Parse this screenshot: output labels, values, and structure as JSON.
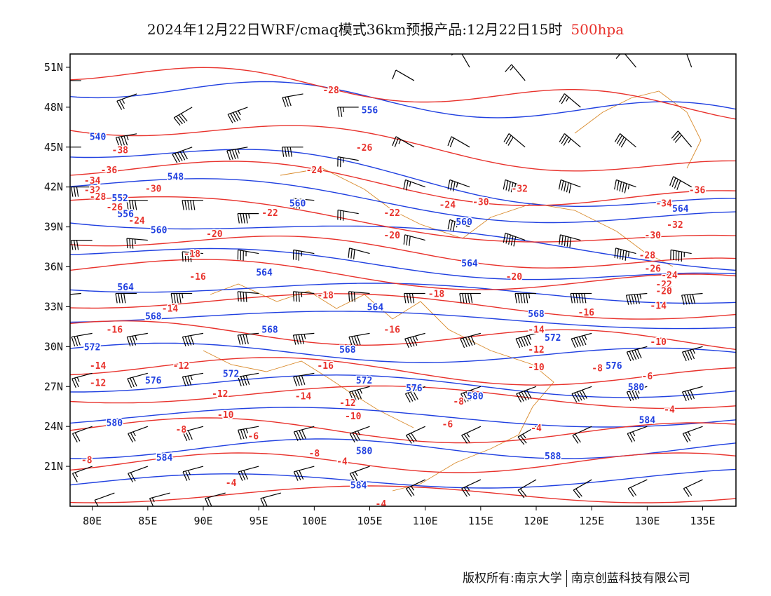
{
  "title": {
    "main": "2024年12月22日WRF/cmaq模式36km预报产品:12月22日15时",
    "level": "500hpa"
  },
  "axes": {
    "lat_labels": [
      "51N",
      "48N",
      "45N",
      "42N",
      "39N",
      "36N",
      "33N",
      "30N",
      "27N",
      "24N",
      "21N"
    ],
    "lat_values": [
      51,
      48,
      45,
      42,
      39,
      36,
      33,
      30,
      27,
      24,
      21
    ],
    "lon_labels": [
      "80E",
      "85E",
      "90E",
      "95E",
      "100E",
      "105E",
      "110E",
      "115E",
      "120E",
      "125E",
      "130E",
      "135E"
    ],
    "lon_values": [
      80,
      85,
      90,
      95,
      100,
      105,
      110,
      115,
      120,
      125,
      130,
      135
    ],
    "lon_range": [
      78,
      138
    ],
    "lat_range": [
      18,
      52
    ]
  },
  "colors": {
    "height_contour": "#2040e0",
    "temperature_contour": "#e8322c",
    "wind_barb": "#000000",
    "boundary": "#d98a2b"
  },
  "height_labels": [
    {
      "text": "556",
      "lon": 105.0,
      "lat": 47.8
    },
    {
      "text": "540",
      "lon": 80.5,
      "lat": 45.8
    },
    {
      "text": "548",
      "lon": 87.5,
      "lat": 42.8
    },
    {
      "text": "552",
      "lon": 82.5,
      "lat": 41.2
    },
    {
      "text": "556",
      "lon": 83.0,
      "lat": 40.0
    },
    {
      "text": "560",
      "lon": 98.5,
      "lat": 40.8
    },
    {
      "text": "560",
      "lon": 86.0,
      "lat": 38.8
    },
    {
      "text": "560",
      "lon": 113.5,
      "lat": 39.4
    },
    {
      "text": "564",
      "lon": 133.0,
      "lat": 40.4
    },
    {
      "text": "564",
      "lon": 95.5,
      "lat": 35.6
    },
    {
      "text": "564",
      "lon": 83.0,
      "lat": 34.5
    },
    {
      "text": "564",
      "lon": 114.0,
      "lat": 36.3
    },
    {
      "text": "564",
      "lon": 105.5,
      "lat": 33.0
    },
    {
      "text": "568",
      "lon": 85.5,
      "lat": 32.3
    },
    {
      "text": "568",
      "lon": 96.0,
      "lat": 31.3
    },
    {
      "text": "568",
      "lon": 103.0,
      "lat": 29.8
    },
    {
      "text": "568",
      "lon": 120.0,
      "lat": 32.5
    },
    {
      "text": "572",
      "lon": 80.0,
      "lat": 30.0
    },
    {
      "text": "572",
      "lon": 92.5,
      "lat": 28.0
    },
    {
      "text": "572",
      "lon": 104.5,
      "lat": 27.5
    },
    {
      "text": "572",
      "lon": 121.5,
      "lat": 30.7
    },
    {
      "text": "576",
      "lon": 85.5,
      "lat": 27.5
    },
    {
      "text": "576",
      "lon": 109.0,
      "lat": 26.9
    },
    {
      "text": "576",
      "lon": 127.0,
      "lat": 28.6
    },
    {
      "text": "580",
      "lon": 82.0,
      "lat": 24.3
    },
    {
      "text": "580",
      "lon": 114.5,
      "lat": 26.3
    },
    {
      "text": "580",
      "lon": 104.5,
      "lat": 22.2
    },
    {
      "text": "580",
      "lon": 129.0,
      "lat": 27.0
    },
    {
      "text": "584",
      "lon": 86.5,
      "lat": 21.7
    },
    {
      "text": "584",
      "lon": 104.0,
      "lat": 19.6
    },
    {
      "text": "584",
      "lon": 130.0,
      "lat": 24.5
    },
    {
      "text": "588",
      "lon": 121.5,
      "lat": 21.8
    }
  ],
  "temperature_labels": [
    {
      "text": "-28",
      "lon": 101.5,
      "lat": 49.3
    },
    {
      "text": "-26",
      "lon": 104.5,
      "lat": 45.0
    },
    {
      "text": "-24",
      "lon": 100.0,
      "lat": 43.3
    },
    {
      "text": "-38",
      "lon": 82.5,
      "lat": 44.8
    },
    {
      "text": "-36",
      "lon": 81.5,
      "lat": 43.3
    },
    {
      "text": "-34",
      "lon": 80.0,
      "lat": 42.5
    },
    {
      "text": "-32",
      "lon": 80.0,
      "lat": 41.8
    },
    {
      "text": "-30",
      "lon": 85.5,
      "lat": 41.9
    },
    {
      "text": "-28",
      "lon": 80.5,
      "lat": 41.3
    },
    {
      "text": "-26",
      "lon": 82.0,
      "lat": 40.5
    },
    {
      "text": "-24",
      "lon": 84.0,
      "lat": 39.5
    },
    {
      "text": "-22",
      "lon": 96.0,
      "lat": 40.1
    },
    {
      "text": "-22",
      "lon": 107.0,
      "lat": 40.1
    },
    {
      "text": "-20",
      "lon": 91.0,
      "lat": 38.5
    },
    {
      "text": "-20",
      "lon": 107.0,
      "lat": 38.4
    },
    {
      "text": "-20",
      "lon": 118.0,
      "lat": 35.3
    },
    {
      "text": "-18",
      "lon": 89.0,
      "lat": 37.0
    },
    {
      "text": "-18",
      "lon": 101.0,
      "lat": 33.9
    },
    {
      "text": "-18",
      "lon": 111.0,
      "lat": 34.0
    },
    {
      "text": "-16",
      "lon": 89.5,
      "lat": 35.3
    },
    {
      "text": "-16",
      "lon": 82.0,
      "lat": 31.3
    },
    {
      "text": "-16",
      "lon": 107.0,
      "lat": 31.3
    },
    {
      "text": "-16",
      "lon": 101.0,
      "lat": 28.6
    },
    {
      "text": "-16",
      "lon": 124.5,
      "lat": 32.6
    },
    {
      "text": "-14",
      "lon": 87.0,
      "lat": 32.9
    },
    {
      "text": "-14",
      "lon": 80.5,
      "lat": 28.6
    },
    {
      "text": "-14",
      "lon": 99.0,
      "lat": 26.3
    },
    {
      "text": "-14",
      "lon": 120.0,
      "lat": 31.3
    },
    {
      "text": "-14",
      "lon": 131.0,
      "lat": 33.1
    },
    {
      "text": "-12",
      "lon": 88.0,
      "lat": 28.6
    },
    {
      "text": "-12",
      "lon": 80.5,
      "lat": 27.3
    },
    {
      "text": "-12",
      "lon": 91.5,
      "lat": 26.5
    },
    {
      "text": "-12",
      "lon": 103.0,
      "lat": 25.8
    },
    {
      "text": "-12",
      "lon": 120.0,
      "lat": 29.8
    },
    {
      "text": "-10",
      "lon": 92.0,
      "lat": 24.9
    },
    {
      "text": "-10",
      "lon": 103.5,
      "lat": 24.8
    },
    {
      "text": "-10",
      "lon": 120.0,
      "lat": 28.5
    },
    {
      "text": "-10",
      "lon": 131.0,
      "lat": 30.4
    },
    {
      "text": "-8",
      "lon": 88.0,
      "lat": 23.8
    },
    {
      "text": "-8",
      "lon": 113.0,
      "lat": 25.9
    },
    {
      "text": "-8",
      "lon": 100.0,
      "lat": 22.0
    },
    {
      "text": "-8",
      "lon": 125.5,
      "lat": 28.4
    },
    {
      "text": "-8",
      "lon": 79.5,
      "lat": 21.5
    },
    {
      "text": "-6",
      "lon": 94.5,
      "lat": 23.3
    },
    {
      "text": "-6",
      "lon": 112.0,
      "lat": 24.2
    },
    {
      "text": "-6",
      "lon": 130.0,
      "lat": 27.8
    },
    {
      "text": "-4",
      "lon": 102.5,
      "lat": 21.4
    },
    {
      "text": "-4",
      "lon": 92.5,
      "lat": 19.8
    },
    {
      "text": "-4",
      "lon": 106.0,
      "lat": 18.2
    },
    {
      "text": "-4",
      "lon": 120.0,
      "lat": 23.9
    },
    {
      "text": "-4",
      "lon": 132.0,
      "lat": 25.3
    },
    {
      "text": "-32",
      "lon": 118.5,
      "lat": 41.9
    },
    {
      "text": "-30",
      "lon": 115.0,
      "lat": 40.9
    },
    {
      "text": "-24",
      "lon": 112.0,
      "lat": 40.7
    },
    {
      "text": "-36",
      "lon": 134.5,
      "lat": 41.8
    },
    {
      "text": "-34",
      "lon": 131.5,
      "lat": 40.8
    },
    {
      "text": "-32",
      "lon": 132.5,
      "lat": 39.2
    },
    {
      "text": "-30",
      "lon": 130.5,
      "lat": 38.4
    },
    {
      "text": "-28",
      "lon": 130.0,
      "lat": 36.9
    },
    {
      "text": "-26",
      "lon": 130.5,
      "lat": 35.9
    },
    {
      "text": "-24",
      "lon": 132.0,
      "lat": 35.4
    },
    {
      "text": "-22",
      "lon": 131.5,
      "lat": 34.7
    },
    {
      "text": "-20",
      "lon": 131.5,
      "lat": 34.2
    }
  ],
  "wind_barbs": [
    {
      "lon": 79,
      "lat": 50,
      "dir": 270,
      "spd": 20
    },
    {
      "lon": 84,
      "lat": 49,
      "dir": 250,
      "spd": 25
    },
    {
      "lon": 89,
      "lat": 48,
      "dir": 240,
      "spd": 40
    },
    {
      "lon": 94,
      "lat": 48,
      "dir": 250,
      "spd": 45
    },
    {
      "lon": 99,
      "lat": 49,
      "dir": 260,
      "spd": 30
    },
    {
      "lon": 104,
      "lat": 48,
      "dir": 270,
      "spd": 25
    },
    {
      "lon": 109,
      "lat": 50,
      "dir": 300,
      "spd": 10
    },
    {
      "lon": 114,
      "lat": 51,
      "dir": 330,
      "spd": 10
    },
    {
      "lon": 119,
      "lat": 50,
      "dir": 320,
      "spd": 15
    },
    {
      "lon": 124,
      "lat": 48,
      "dir": 310,
      "spd": 25
    },
    {
      "lon": 129,
      "lat": 51,
      "dir": 320,
      "spd": 10
    },
    {
      "lon": 134,
      "lat": 51,
      "dir": 340,
      "spd": 10
    },
    {
      "lon": 79,
      "lat": 45,
      "dir": 270,
      "spd": 30
    },
    {
      "lon": 84,
      "lat": 46,
      "dir": 260,
      "spd": 45
    },
    {
      "lon": 89,
      "lat": 45,
      "dir": 250,
      "spd": 50
    },
    {
      "lon": 94,
      "lat": 45,
      "dir": 260,
      "spd": 45
    },
    {
      "lon": 99,
      "lat": 45,
      "dir": 270,
      "spd": 40
    },
    {
      "lon": 104,
      "lat": 44,
      "dir": 280,
      "spd": 25
    },
    {
      "lon": 109,
      "lat": 45,
      "dir": 300,
      "spd": 25
    },
    {
      "lon": 114,
      "lat": 45,
      "dir": 300,
      "spd": 20
    },
    {
      "lon": 119,
      "lat": 45,
      "dir": 310,
      "spd": 30
    },
    {
      "lon": 124,
      "lat": 45,
      "dir": 310,
      "spd": 35
    },
    {
      "lon": 129,
      "lat": 45,
      "dir": 310,
      "spd": 40
    },
    {
      "lon": 134,
      "lat": 45,
      "dir": 320,
      "spd": 30
    },
    {
      "lon": 80,
      "lat": 42,
      "dir": 270,
      "spd": 30
    },
    {
      "lon": 85,
      "lat": 41,
      "dir": 270,
      "spd": 40
    },
    {
      "lon": 90,
      "lat": 41,
      "dir": 270,
      "spd": 50
    },
    {
      "lon": 95,
      "lat": 40,
      "dir": 270,
      "spd": 45
    },
    {
      "lon": 100,
      "lat": 41,
      "dir": 275,
      "spd": 35
    },
    {
      "lon": 104,
      "lat": 40,
      "dir": 280,
      "spd": 30
    },
    {
      "lon": 110,
      "lat": 42,
      "dir": 290,
      "spd": 25
    },
    {
      "lon": 114,
      "lat": 42,
      "dir": 290,
      "spd": 35
    },
    {
      "lon": 119,
      "lat": 42,
      "dir": 290,
      "spd": 45
    },
    {
      "lon": 124,
      "lat": 42,
      "dir": 290,
      "spd": 50
    },
    {
      "lon": 129,
      "lat": 42,
      "dir": 290,
      "spd": 55
    },
    {
      "lon": 134,
      "lat": 42,
      "dir": 300,
      "spd": 40
    },
    {
      "lon": 80,
      "lat": 38,
      "dir": 270,
      "spd": 30
    },
    {
      "lon": 85,
      "lat": 38,
      "dir": 275,
      "spd": 35
    },
    {
      "lon": 90,
      "lat": 37,
      "dir": 275,
      "spd": 40
    },
    {
      "lon": 95,
      "lat": 37,
      "dir": 280,
      "spd": 35
    },
    {
      "lon": 100,
      "lat": 37,
      "dir": 280,
      "spd": 35
    },
    {
      "lon": 105,
      "lat": 37,
      "dir": 285,
      "spd": 30
    },
    {
      "lon": 110,
      "lat": 38,
      "dir": 285,
      "spd": 30
    },
    {
      "lon": 114,
      "lat": 39,
      "dir": 290,
      "spd": 35
    },
    {
      "lon": 119,
      "lat": 38,
      "dir": 290,
      "spd": 50
    },
    {
      "lon": 124,
      "lat": 38,
      "dir": 285,
      "spd": 50
    },
    {
      "lon": 129,
      "lat": 37,
      "dir": 285,
      "spd": 55
    },
    {
      "lon": 134,
      "lat": 37,
      "dir": 280,
      "spd": 55
    },
    {
      "lon": 79,
      "lat": 34,
      "dir": 265,
      "spd": 35
    },
    {
      "lon": 84,
      "lat": 34,
      "dir": 270,
      "spd": 40
    },
    {
      "lon": 89,
      "lat": 34,
      "dir": 270,
      "spd": 45
    },
    {
      "lon": 95,
      "lat": 34,
      "dir": 275,
      "spd": 40
    },
    {
      "lon": 100,
      "lat": 34,
      "dir": 275,
      "spd": 35
    },
    {
      "lon": 105,
      "lat": 34,
      "dir": 275,
      "spd": 30
    },
    {
      "lon": 110,
      "lat": 34,
      "dir": 270,
      "spd": 40
    },
    {
      "lon": 115,
      "lat": 34,
      "dir": 270,
      "spd": 50
    },
    {
      "lon": 120,
      "lat": 34,
      "dir": 270,
      "spd": 55
    },
    {
      "lon": 125,
      "lat": 34,
      "dir": 270,
      "spd": 60
    },
    {
      "lon": 130,
      "lat": 34,
      "dir": 265,
      "spd": 55
    },
    {
      "lon": 135,
      "lat": 34,
      "dir": 265,
      "spd": 50
    },
    {
      "lon": 80,
      "lat": 31,
      "dir": 260,
      "spd": 30
    },
    {
      "lon": 85,
      "lat": 31,
      "dir": 260,
      "spd": 35
    },
    {
      "lon": 90,
      "lat": 31,
      "dir": 260,
      "spd": 40
    },
    {
      "lon": 95,
      "lat": 31,
      "dir": 265,
      "spd": 40
    },
    {
      "lon": 100,
      "lat": 31,
      "dir": 265,
      "spd": 45
    },
    {
      "lon": 105,
      "lat": 31,
      "dir": 260,
      "spd": 40
    },
    {
      "lon": 110,
      "lat": 31,
      "dir": 255,
      "spd": 45
    },
    {
      "lon": 115,
      "lat": 31,
      "dir": 255,
      "spd": 50
    },
    {
      "lon": 120,
      "lat": 31,
      "dir": 255,
      "spd": 55
    },
    {
      "lon": 125,
      "lat": 31,
      "dir": 255,
      "spd": 55
    },
    {
      "lon": 130,
      "lat": 30,
      "dir": 255,
      "spd": 50
    },
    {
      "lon": 135,
      "lat": 30,
      "dir": 255,
      "spd": 45
    },
    {
      "lon": 80,
      "lat": 28,
      "dir": 255,
      "spd": 25
    },
    {
      "lon": 85,
      "lat": 28,
      "dir": 255,
      "spd": 30
    },
    {
      "lon": 90,
      "lat": 28,
      "dir": 260,
      "spd": 35
    },
    {
      "lon": 95,
      "lat": 28,
      "dir": 260,
      "spd": 40
    },
    {
      "lon": 100,
      "lat": 28,
      "dir": 260,
      "spd": 40
    },
    {
      "lon": 105,
      "lat": 27,
      "dir": 255,
      "spd": 45
    },
    {
      "lon": 110,
      "lat": 27,
      "dir": 250,
      "spd": 40
    },
    {
      "lon": 115,
      "lat": 27,
      "dir": 250,
      "spd": 45
    },
    {
      "lon": 120,
      "lat": 27,
      "dir": 250,
      "spd": 50
    },
    {
      "lon": 125,
      "lat": 27,
      "dir": 250,
      "spd": 50
    },
    {
      "lon": 130,
      "lat": 27,
      "dir": 255,
      "spd": 45
    },
    {
      "lon": 135,
      "lat": 27,
      "dir": 255,
      "spd": 40
    },
    {
      "lon": 80,
      "lat": 24,
      "dir": 250,
      "spd": 20
    },
    {
      "lon": 85,
      "lat": 24,
      "dir": 250,
      "spd": 25
    },
    {
      "lon": 90,
      "lat": 24,
      "dir": 255,
      "spd": 30
    },
    {
      "lon": 95,
      "lat": 24,
      "dir": 260,
      "spd": 35
    },
    {
      "lon": 100,
      "lat": 24,
      "dir": 255,
      "spd": 40
    },
    {
      "lon": 105,
      "lat": 24,
      "dir": 250,
      "spd": 35
    },
    {
      "lon": 110,
      "lat": 24,
      "dir": 245,
      "spd": 30
    },
    {
      "lon": 115,
      "lat": 24,
      "dir": 245,
      "spd": 25
    },
    {
      "lon": 120,
      "lat": 24,
      "dir": 240,
      "spd": 25
    },
    {
      "lon": 125,
      "lat": 24,
      "dir": 245,
      "spd": 20
    },
    {
      "lon": 130,
      "lat": 24,
      "dir": 250,
      "spd": 25
    },
    {
      "lon": 135,
      "lat": 24,
      "dir": 250,
      "spd": 25
    },
    {
      "lon": 80,
      "lat": 21,
      "dir": 250,
      "spd": 15
    },
    {
      "lon": 85,
      "lat": 21,
      "dir": 250,
      "spd": 20
    },
    {
      "lon": 90,
      "lat": 21,
      "dir": 255,
      "spd": 25
    },
    {
      "lon": 95,
      "lat": 21,
      "dir": 255,
      "spd": 30
    },
    {
      "lon": 100,
      "lat": 21,
      "dir": 255,
      "spd": 30
    },
    {
      "lon": 105,
      "lat": 21,
      "dir": 250,
      "spd": 25
    },
    {
      "lon": 110,
      "lat": 20,
      "dir": 245,
      "spd": 25
    },
    {
      "lon": 115,
      "lat": 20,
      "dir": 245,
      "spd": 25
    },
    {
      "lon": 120,
      "lat": 20,
      "dir": 240,
      "spd": 20
    },
    {
      "lon": 125,
      "lat": 20,
      "dir": 240,
      "spd": 20
    },
    {
      "lon": 130,
      "lat": 20,
      "dir": 245,
      "spd": 20
    },
    {
      "lon": 135,
      "lat": 20,
      "dir": 245,
      "spd": 20
    },
    {
      "lon": 82,
      "lat": 19,
      "dir": 250,
      "spd": 10
    },
    {
      "lon": 87,
      "lat": 19,
      "dir": 255,
      "spd": 15
    },
    {
      "lon": 92,
      "lat": 19,
      "dir": 255,
      "spd": 20
    },
    {
      "lon": 97,
      "lat": 19,
      "dir": 255,
      "spd": 20
    }
  ],
  "footer": {
    "copyright": "版权所有:南京大学",
    "company": "南京创蓝科技有限公司"
  }
}
